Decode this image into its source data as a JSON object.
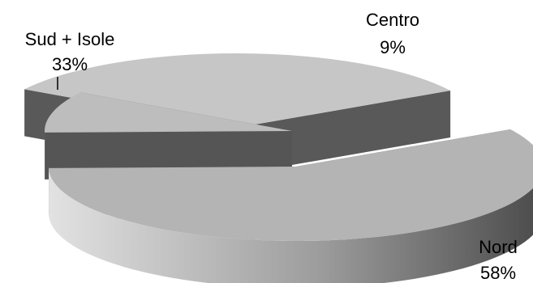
{
  "chart_data": {
    "type": "pie",
    "style": "3d-exploded",
    "title": "",
    "slices": [
      {
        "label": "Nord",
        "value": 58,
        "value_label": "58%",
        "color": "#b4b4b4"
      },
      {
        "label": "Centro",
        "value": 9,
        "value_label": "9%",
        "color": "#bdbdbd"
      },
      {
        "label": "Sud + Isole",
        "value": 33,
        "value_label": "33%",
        "color": "#c6c6c6"
      }
    ]
  }
}
